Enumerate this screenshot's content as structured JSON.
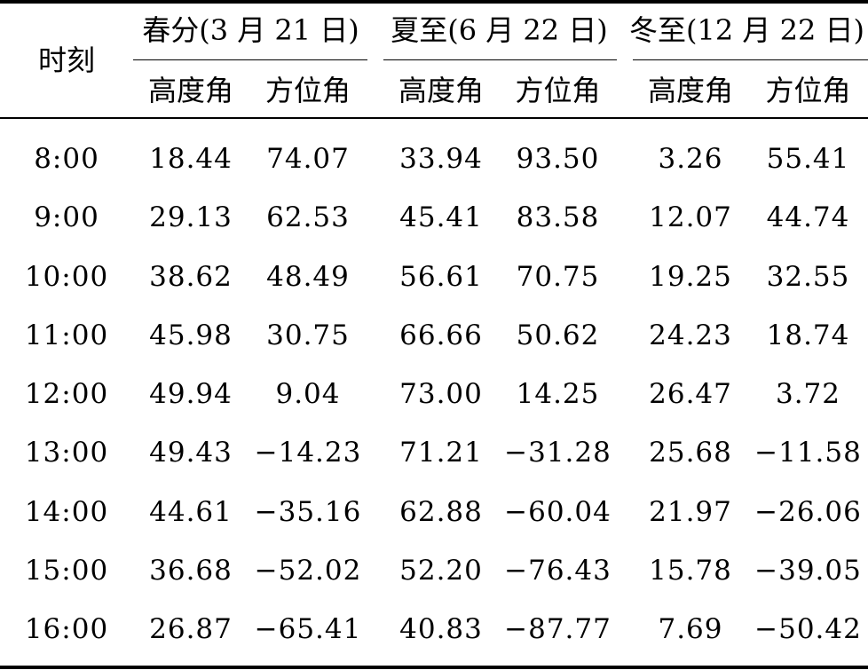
{
  "table": {
    "time_header": "时刻",
    "groups": [
      {
        "label": "春分(3 月 21 日)",
        "sub": [
          "高度角",
          "方位角"
        ]
      },
      {
        "label": "夏至(6 月 22 日)",
        "sub": [
          "高度角",
          "方位角"
        ]
      },
      {
        "label": "冬至(12 月 22 日)",
        "sub": [
          "高度角",
          "方位角"
        ]
      }
    ],
    "rows": [
      {
        "time": "8:00",
        "values": [
          "18.44",
          "74.07",
          "33.94",
          "93.50",
          "3.26",
          "55.41"
        ]
      },
      {
        "time": "9:00",
        "values": [
          "29.13",
          "62.53",
          "45.41",
          "83.58",
          "12.07",
          "44.74"
        ]
      },
      {
        "time": "10:00",
        "values": [
          "38.62",
          "48.49",
          "56.61",
          "70.75",
          "19.25",
          "32.55"
        ]
      },
      {
        "time": "11:00",
        "values": [
          "45.98",
          "30.75",
          "66.66",
          "50.62",
          "24.23",
          "18.74"
        ]
      },
      {
        "time": "12:00",
        "values": [
          "49.94",
          "9.04",
          "73.00",
          "14.25",
          "26.47",
          "3.72"
        ]
      },
      {
        "time": "13:00",
        "values": [
          "49.43",
          "−14.23",
          "71.21",
          "−31.28",
          "25.68",
          "−11.58"
        ]
      },
      {
        "time": "14:00",
        "values": [
          "44.61",
          "−35.16",
          "62.88",
          "−60.04",
          "21.97",
          "−26.06"
        ]
      },
      {
        "time": "15:00",
        "values": [
          "36.68",
          "−52.02",
          "52.20",
          "−76.43",
          "15.78",
          "−39.05"
        ]
      },
      {
        "time": "16:00",
        "values": [
          "26.87",
          "−65.41",
          "40.83",
          "−87.77",
          "7.69",
          "−50.42"
        ]
      }
    ]
  }
}
